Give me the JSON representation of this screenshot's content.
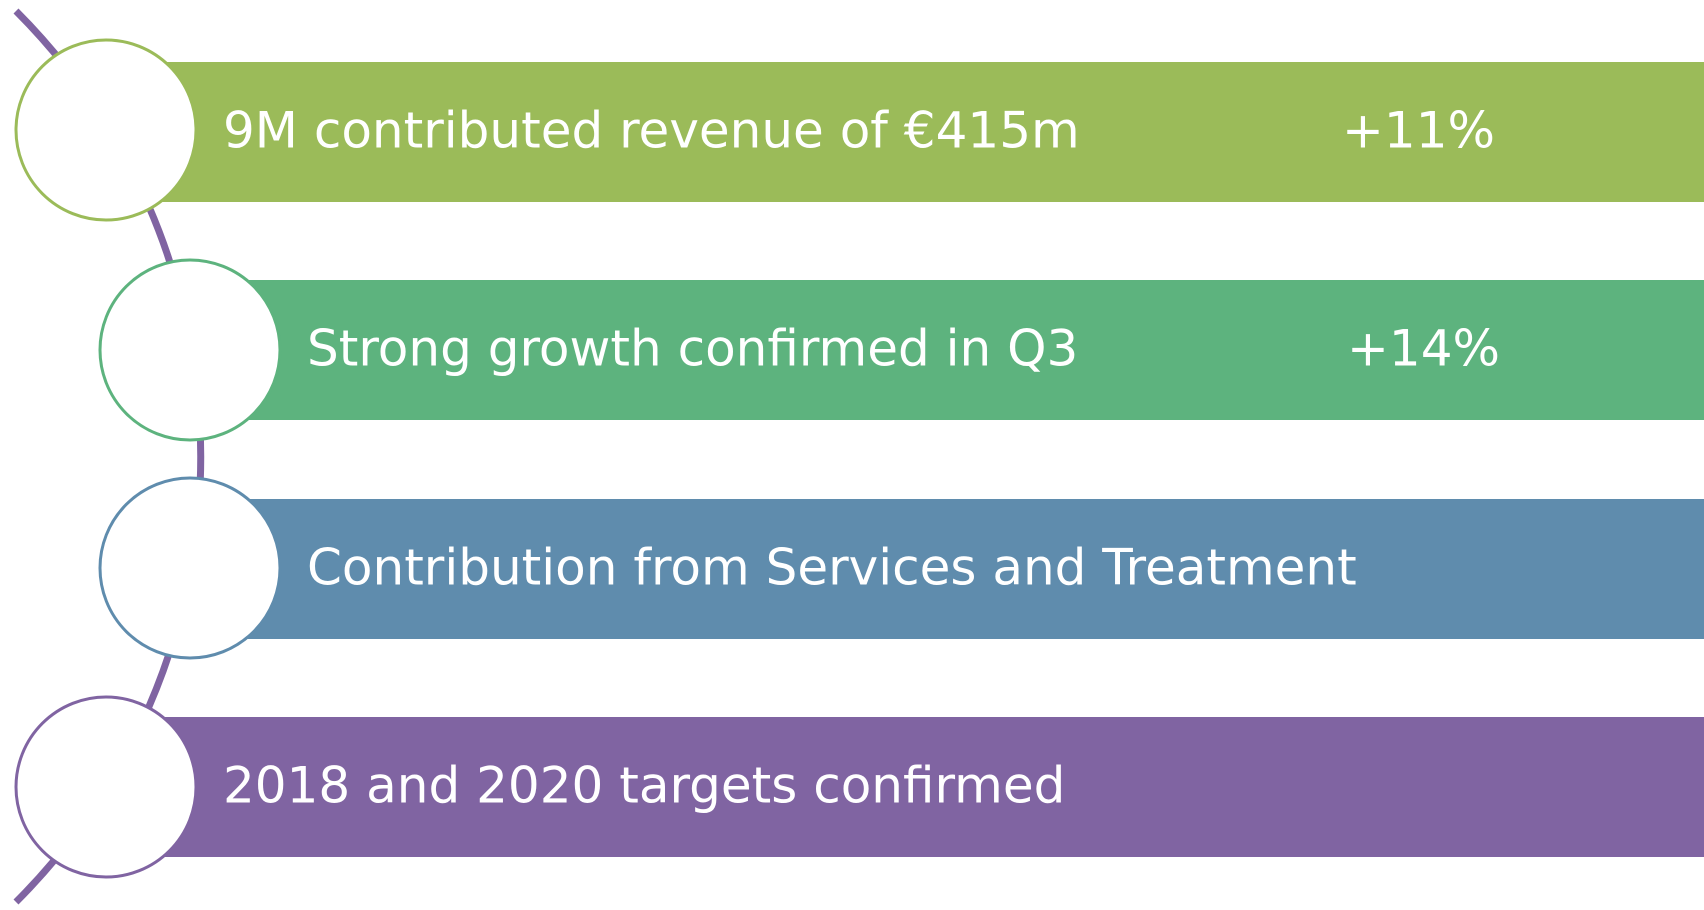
{
  "items": [
    {
      "text": "9M contributed revenue of €415m",
      "change": "+11%"
    },
    {
      "text": "Strong growth confirmed in Q3",
      "change": "+14%"
    },
    {
      "text": "Contribution from Services and Treatment"
    },
    {
      "text": "2018 and 2020 targets confirmed"
    }
  ]
}
